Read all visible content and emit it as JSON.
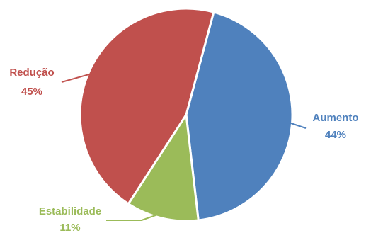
{
  "chart_data": {
    "type": "pie",
    "title": "",
    "slices": [
      {
        "label": "Aumento",
        "value": 44,
        "value_label": "44%",
        "color": "#4F81BD"
      },
      {
        "label": "Estabilidade",
        "value": 11,
        "value_label": "11%",
        "color": "#9BBB59"
      },
      {
        "label": "Redução",
        "value": 45,
        "value_label": "45%",
        "color": "#C0504D"
      }
    ],
    "start_angle_deg": 15,
    "direction": "clockwise",
    "legend": "none",
    "labels": "outside-with-leader-lines"
  }
}
